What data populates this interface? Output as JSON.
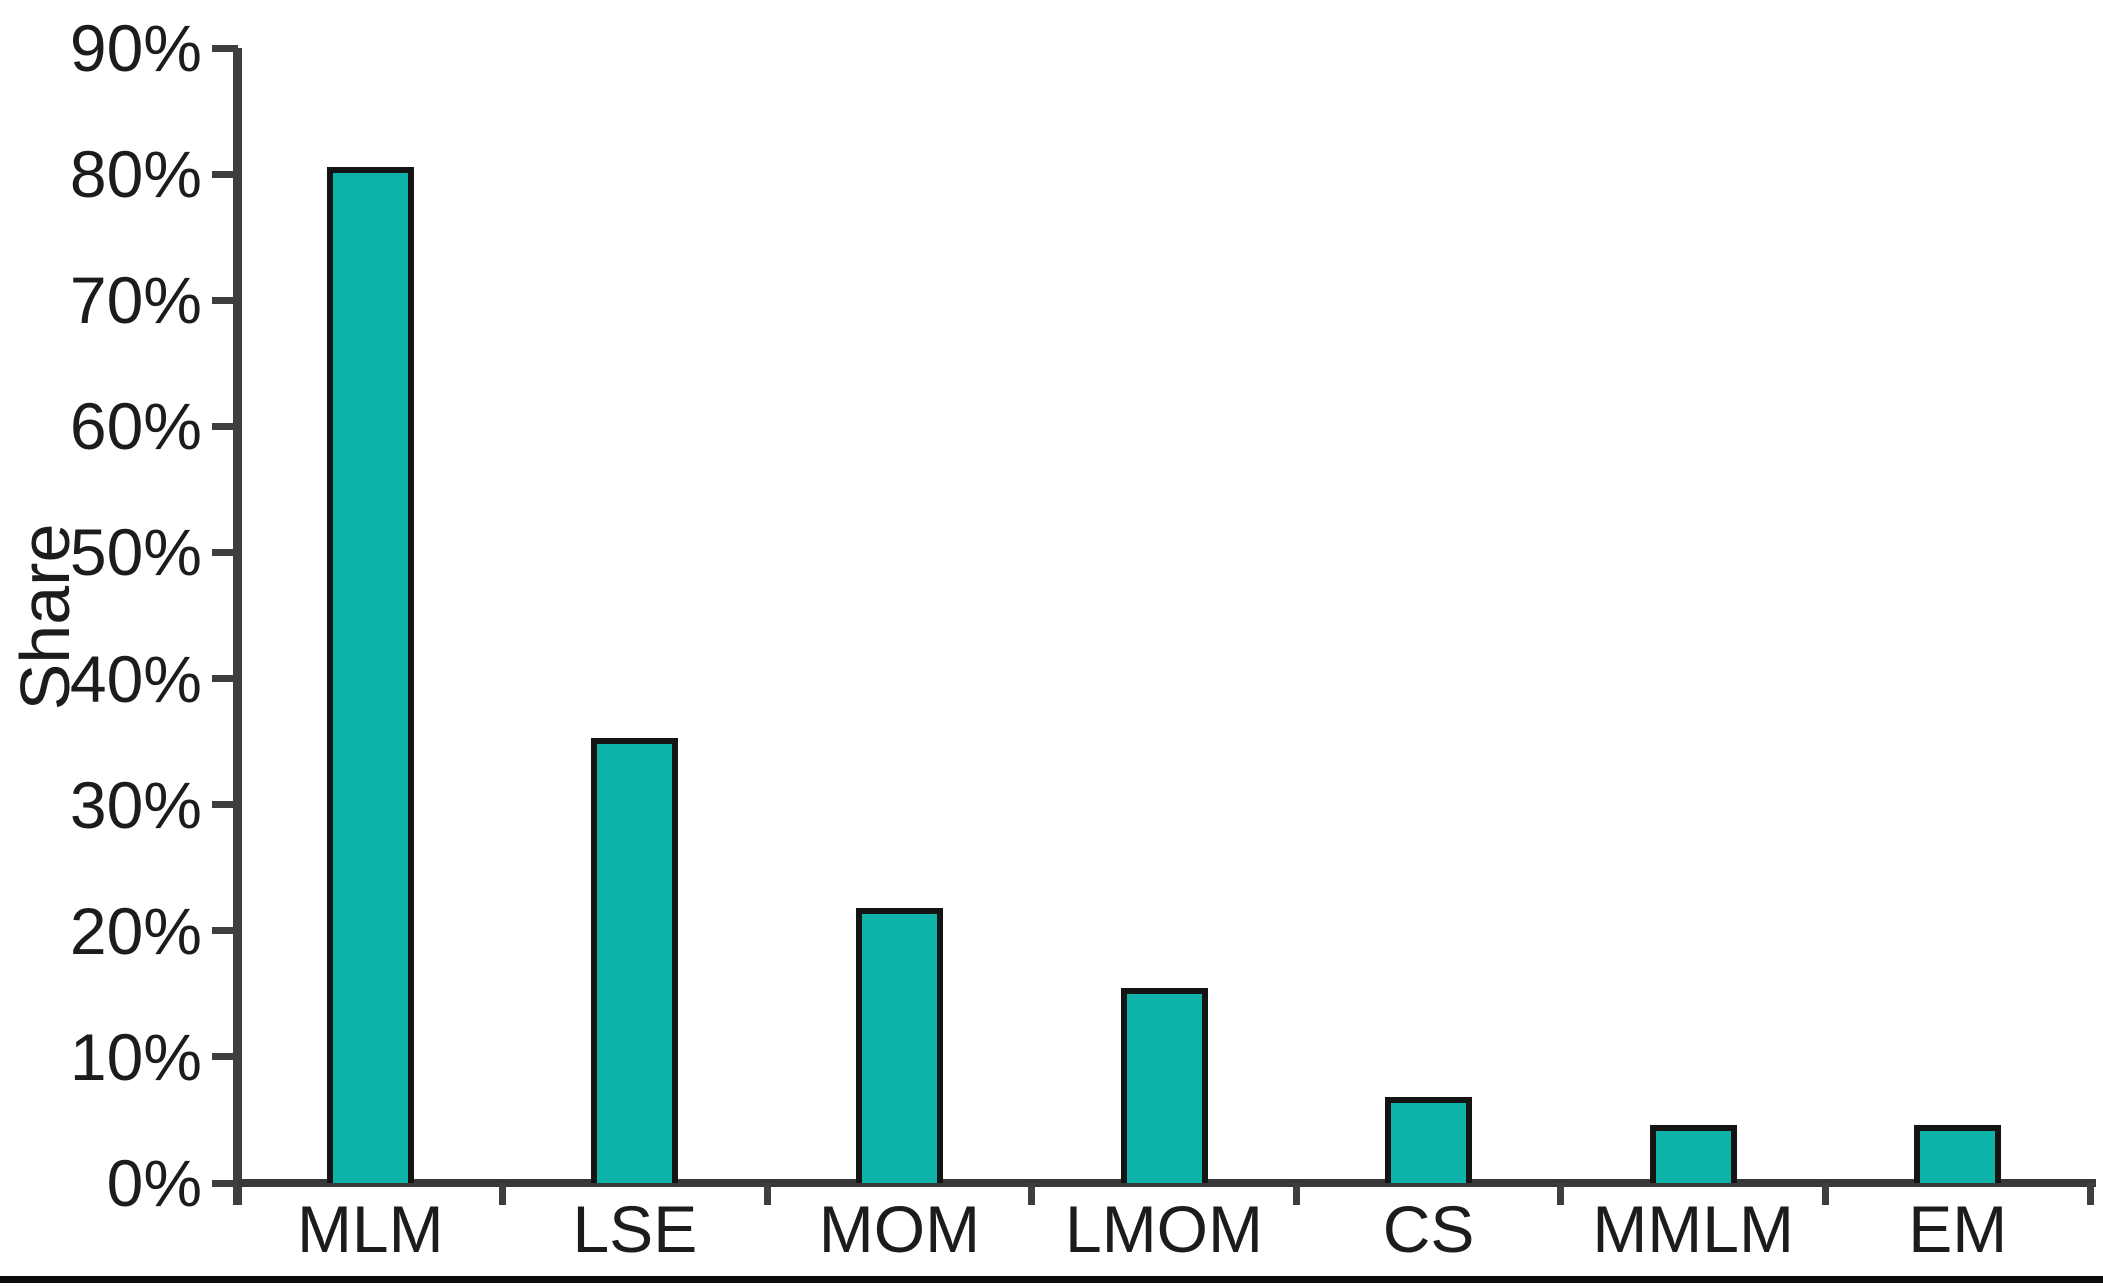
{
  "chart_data": {
    "type": "bar",
    "title": "",
    "ylabel": "Share",
    "xlabel": "",
    "categories": [
      "MLM",
      "LSE",
      "MOM",
      "LMOM",
      "CS",
      "MMLM",
      "EM"
    ],
    "values": [
      80.6,
      35.3,
      21.8,
      15.5,
      6.8,
      4.6,
      4.6
    ],
    "ylim": [
      0,
      90
    ],
    "ytick_step": 10,
    "ytick_labels": [
      "0%",
      "10%",
      "20%",
      "30%",
      "40%",
      "50%",
      "60%",
      "70%",
      "80%",
      "90%"
    ],
    "grid": false,
    "legend": null,
    "bar_color": "#0eb3aa",
    "bar_border_color": "#141414",
    "axis_color": "#3e3e3e",
    "text_color": "#1c1c1c",
    "background": "#ffffff"
  }
}
